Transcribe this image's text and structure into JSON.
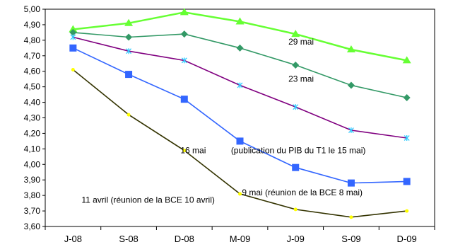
{
  "chart_data": {
    "type": "line",
    "title": "",
    "xlabel": "",
    "ylabel": "",
    "ylim": [
      3.6,
      5.0
    ],
    "y_tick_step": 0.1,
    "grid": false,
    "legend": "none",
    "categories": [
      "J-08",
      "S-08",
      "D-08",
      "M-09",
      "J-09",
      "S-09",
      "D-09"
    ],
    "y_ticks": [
      "3,60",
      "3,70",
      "3,80",
      "3,90",
      "4,00",
      "4,10",
      "4,20",
      "4,30",
      "4,40",
      "4,50",
      "4,60",
      "4,70",
      "4,80",
      "4,90",
      "5,00"
    ],
    "series": [
      {
        "color": "#66ff33",
        "marker": "triangle",
        "values": [
          4.87,
          4.91,
          4.98,
          4.92,
          4.84,
          4.74,
          4.67
        ]
      },
      {
        "color": "#339966",
        "marker": "diamond",
        "values": [
          4.85,
          4.82,
          4.84,
          4.75,
          4.64,
          4.51,
          4.43
        ]
      },
      {
        "color": "#800080",
        "marker": "star",
        "values": [
          4.82,
          4.73,
          4.67,
          4.51,
          4.37,
          4.22,
          4.17
        ]
      },
      {
        "color": "#3366ff",
        "marker": "square",
        "values": [
          4.75,
          4.58,
          4.42,
          4.15,
          3.98,
          3.88,
          3.89
        ]
      },
      {
        "color": "#333300",
        "marker": "dot",
        "values": [
          4.61,
          4.32,
          4.09,
          3.81,
          3.71,
          3.66,
          3.7
        ]
      }
    ],
    "annotations": [
      {
        "text": "29 mai",
        "x": 4.6,
        "y": 4.79
      },
      {
        "text": "23 mai",
        "x": 4.6,
        "y": 4.55
      },
      {
        "text": "16 mai",
        "x": 2.66,
        "y": 4.09
      },
      {
        "text": "(publication du PIB du T1 le 15 mai)",
        "x": 4.55,
        "y": 4.09
      },
      {
        "text": "9 mai (réunion de la BCE 8 mai)",
        "x": 4.62,
        "y": 3.82
      },
      {
        "text": "11 avril  (réunion de la BCE 10 avril)",
        "x": 1.85,
        "y": 3.77
      }
    ]
  }
}
